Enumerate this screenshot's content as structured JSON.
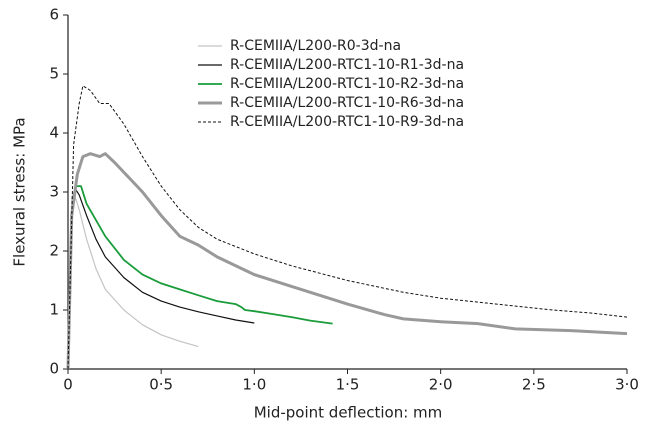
{
  "chart_data": {
    "type": "line",
    "x_label": "Mid-point deflection: mm",
    "y_label": "Flexural stress: MPa",
    "xlim": [
      0,
      3
    ],
    "ylim": [
      0,
      6
    ],
    "xticks": [
      0,
      {
        "value": 0.5,
        "label": "0·5"
      },
      {
        "value": 1,
        "label": "1·0"
      },
      {
        "value": 1.5,
        "label": "1·5"
      },
      {
        "value": 2,
        "label": "2·0"
      },
      {
        "value": 2.5,
        "label": "2·5"
      },
      {
        "value": 3,
        "label": "3·0"
      }
    ],
    "yticks": [
      0,
      1,
      2,
      3,
      4,
      5,
      6
    ],
    "series": [
      {
        "name": "R-CEMIIA/L200-R0-3d-na",
        "color": "#c4c4c4",
        "width": 1.2,
        "style": "solid",
        "x": [
          0,
          0.02,
          0.03,
          0.06,
          0.1,
          0.15,
          0.2,
          0.3,
          0.4,
          0.5,
          0.6,
          0.7
        ],
        "values": [
          0,
          2.9,
          3.0,
          2.7,
          2.2,
          1.7,
          1.35,
          1.0,
          0.75,
          0.58,
          0.47,
          0.38
        ]
      },
      {
        "name": "R-CEMIIA/L200-RTC1-10-R1-3d-na",
        "color": "#111111",
        "width": 1.2,
        "style": "solid",
        "x": [
          0,
          0.02,
          0.04,
          0.06,
          0.1,
          0.15,
          0.2,
          0.3,
          0.4,
          0.5,
          0.6,
          0.7,
          0.8,
          0.9,
          1.0
        ],
        "values": [
          0,
          2.5,
          3.05,
          2.95,
          2.6,
          2.2,
          1.9,
          1.55,
          1.3,
          1.15,
          1.05,
          0.97,
          0.9,
          0.83,
          0.78
        ]
      },
      {
        "name": "R-CEMIIA/L200-RTC1-10-R2-3d-na",
        "color": "#1a9c3a",
        "width": 1.8,
        "style": "solid",
        "x": [
          0,
          0.02,
          0.04,
          0.07,
          0.1,
          0.2,
          0.3,
          0.4,
          0.5,
          0.6,
          0.7,
          0.8,
          0.9,
          0.93,
          0.95,
          1.0,
          1.1,
          1.2,
          1.3,
          1.42
        ],
        "values": [
          0,
          2.6,
          3.1,
          3.1,
          2.8,
          2.25,
          1.85,
          1.6,
          1.45,
          1.35,
          1.25,
          1.15,
          1.1,
          1.05,
          1.0,
          0.98,
          0.93,
          0.88,
          0.82,
          0.77
        ]
      },
      {
        "name": "R-CEMIIA/L200-RTC1-10-R6-3d-na",
        "color": "#999999",
        "width": 3,
        "style": "solid",
        "x": [
          0,
          0.02,
          0.05,
          0.08,
          0.12,
          0.17,
          0.2,
          0.25,
          0.4,
          0.5,
          0.6,
          0.7,
          0.8,
          1.0,
          1.2,
          1.5,
          1.7,
          1.8,
          2.0,
          2.2,
          2.4,
          2.7,
          3.0
        ],
        "values": [
          0,
          2.6,
          3.3,
          3.6,
          3.65,
          3.6,
          3.65,
          3.5,
          3.0,
          2.6,
          2.25,
          2.1,
          1.9,
          1.6,
          1.4,
          1.1,
          0.92,
          0.85,
          0.8,
          0.77,
          0.68,
          0.65,
          0.6
        ]
      },
      {
        "name": "R-CEMIIA/L200-RTC1-10-R9-3d-na",
        "color": "#111111",
        "width": 1,
        "style": "dashed",
        "x": [
          0,
          0.03,
          0.06,
          0.08,
          0.12,
          0.17,
          0.22,
          0.3,
          0.4,
          0.5,
          0.6,
          0.7,
          0.8,
          1.0,
          1.2,
          1.5,
          1.8,
          2.0,
          2.3,
          2.6,
          2.8,
          3.0
        ],
        "values": [
          0,
          3.8,
          4.5,
          4.8,
          4.72,
          4.5,
          4.5,
          4.15,
          3.6,
          3.1,
          2.7,
          2.4,
          2.2,
          1.95,
          1.75,
          1.5,
          1.3,
          1.2,
          1.1,
          1.0,
          0.95,
          0.88
        ]
      }
    ]
  }
}
